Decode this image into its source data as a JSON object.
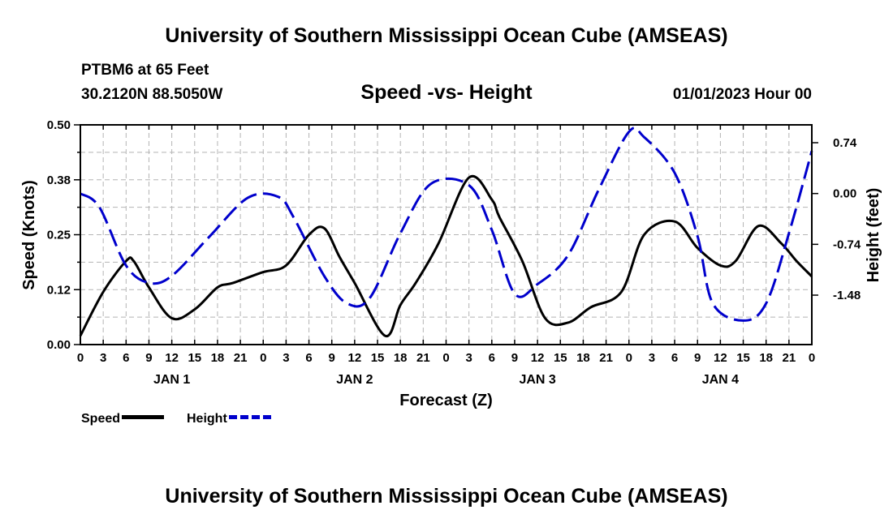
{
  "header": {
    "title": "University of Southern Mississippi Ocean Cube (AMSEAS)",
    "station": "PTBM6 at 65 Feet",
    "coords": "30.2120N  88.5050W",
    "chart_title": "Speed -vs- Height",
    "timestamp": "01/01/2023 Hour 00"
  },
  "footer": {
    "title": "University of Southern Mississippi Ocean Cube (AMSEAS)"
  },
  "legend": {
    "speed_label": "Speed",
    "height_label": "Height"
  },
  "colors": {
    "speed": "#000000",
    "height": "#0000cc",
    "grid": "#b4b4b4"
  },
  "chart_data": {
    "type": "line",
    "title": "Speed -vs- Height",
    "xlabel": "Forecast (Z)",
    "ylabel": "Speed (Knots)",
    "y2label": "Height (feet)",
    "x_range_hours": [
      0,
      96
    ],
    "x_ticks": [
      "0",
      "3",
      "6",
      "9",
      "12",
      "15",
      "18",
      "21",
      "0",
      "3",
      "6",
      "9",
      "12",
      "15",
      "18",
      "21",
      "0",
      "3",
      "6",
      "9",
      "12",
      "15",
      "18",
      "21",
      "0",
      "3",
      "6",
      "9",
      "12",
      "15",
      "18",
      "21",
      "0"
    ],
    "day_labels": [
      "JAN 1",
      "JAN 2",
      "JAN 3",
      "JAN 4"
    ],
    "ylim": [
      0,
      0.5
    ],
    "y_ticks": [
      "0.00",
      "0.12",
      "0.25",
      "0.38",
      "0.50"
    ],
    "y2lim": [
      -2.2,
      1.0
    ],
    "y2_ticks": [
      "-1.48",
      "-0.74",
      "0.00",
      "0.74"
    ],
    "grid": true,
    "series": [
      {
        "name": "Speed",
        "axis": "left",
        "style": "solid",
        "x": [
          0,
          3,
          6,
          7,
          9,
          12,
          15,
          18,
          20,
          24,
          27,
          30,
          32,
          34,
          36,
          40,
          42,
          44,
          47,
          51,
          54,
          55,
          58,
          61,
          64,
          67,
          71,
          74,
          78,
          81,
          84,
          86,
          89,
          92,
          94,
          96
        ],
        "values": [
          0.02,
          0.12,
          0.19,
          0.19,
          0.13,
          0.06,
          0.08,
          0.13,
          0.14,
          0.165,
          0.18,
          0.25,
          0.265,
          0.2,
          0.14,
          0.02,
          0.09,
          0.14,
          0.23,
          0.38,
          0.33,
          0.29,
          0.19,
          0.06,
          0.05,
          0.085,
          0.12,
          0.25,
          0.28,
          0.22,
          0.18,
          0.19,
          0.27,
          0.23,
          0.19,
          0.155
        ]
      },
      {
        "name": "Height",
        "axis": "right",
        "style": "dashed",
        "x": [
          0,
          2.5,
          6,
          9,
          12,
          17,
          22,
          26,
          28,
          32,
          35,
          38,
          42,
          46,
          51,
          54,
          57,
          60,
          64,
          68,
          72,
          74,
          78,
          81,
          83,
          87,
          90,
          93,
          96
        ],
        "values": [
          0.0,
          -0.2,
          -1.05,
          -1.3,
          -1.2,
          -0.62,
          -0.06,
          -0.05,
          -0.35,
          -1.2,
          -1.6,
          -1.52,
          -0.58,
          0.14,
          0.12,
          -0.53,
          -1.46,
          -1.32,
          -0.9,
          0.05,
          0.9,
          0.82,
          0.3,
          -0.62,
          -1.6,
          -1.85,
          -1.6,
          -0.58,
          0.62
        ]
      }
    ]
  }
}
